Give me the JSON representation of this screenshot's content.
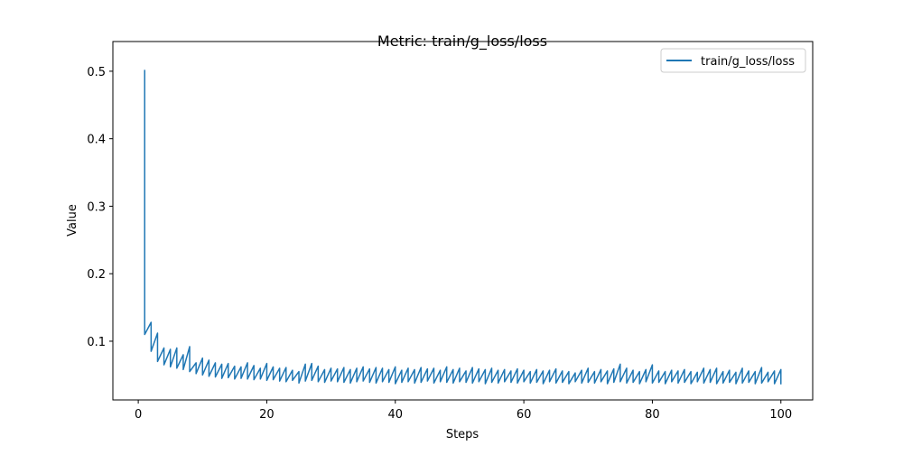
{
  "chart_data": {
    "type": "line",
    "title": "Metric: train/g_loss/loss",
    "xlabel": "Steps",
    "ylabel": "Value",
    "x": [
      1,
      1,
      2,
      2,
      3,
      3,
      4,
      4,
      5,
      5,
      6,
      6,
      7,
      7,
      8,
      8,
      9,
      9,
      10,
      10,
      11,
      11,
      12,
      12,
      13,
      13,
      14,
      14,
      15,
      15,
      16,
      16,
      17,
      17,
      18,
      18,
      19,
      19,
      20,
      20,
      21,
      21,
      22,
      22,
      23,
      23,
      24,
      24,
      25,
      25,
      26,
      26,
      27,
      27,
      28,
      28,
      29,
      29,
      30,
      30,
      31,
      31,
      32,
      32,
      33,
      33,
      34,
      34,
      35,
      35,
      36,
      36,
      37,
      37,
      38,
      38,
      39,
      39,
      40,
      40,
      41,
      41,
      42,
      42,
      43,
      43,
      44,
      44,
      45,
      45,
      46,
      46,
      47,
      47,
      48,
      48,
      49,
      49,
      50,
      50,
      51,
      51,
      52,
      52,
      53,
      53,
      54,
      54,
      55,
      55,
      56,
      56,
      57,
      57,
      58,
      58,
      59,
      59,
      60,
      60,
      61,
      61,
      62,
      62,
      63,
      63,
      64,
      64,
      65,
      65,
      66,
      66,
      67,
      67,
      68,
      68,
      69,
      69,
      70,
      70,
      71,
      71,
      72,
      72,
      73,
      73,
      74,
      74,
      75,
      75,
      76,
      76,
      77,
      77,
      78,
      78,
      79,
      79,
      80,
      80,
      81,
      81,
      82,
      82,
      83,
      83,
      84,
      84,
      85,
      85,
      86,
      86,
      87,
      87,
      88,
      88,
      89,
      89,
      90,
      90,
      91,
      91,
      92,
      92,
      93,
      93,
      94,
      94,
      95,
      95,
      96,
      96,
      97,
      97,
      98,
      98,
      99,
      99,
      100,
      100
    ],
    "series": [
      {
        "name": "train/g_loss/loss",
        "color": "#1f77b4",
        "values": [
          0.502,
          0.11,
          0.128,
          0.085,
          0.112,
          0.07,
          0.09,
          0.065,
          0.088,
          0.062,
          0.09,
          0.06,
          0.08,
          0.058,
          0.092,
          0.055,
          0.068,
          0.052,
          0.075,
          0.05,
          0.072,
          0.048,
          0.068,
          0.047,
          0.066,
          0.045,
          0.067,
          0.046,
          0.063,
          0.044,
          0.062,
          0.045,
          0.068,
          0.044,
          0.064,
          0.043,
          0.06,
          0.044,
          0.067,
          0.042,
          0.062,
          0.043,
          0.06,
          0.041,
          0.061,
          0.04,
          0.057,
          0.042,
          0.055,
          0.038,
          0.066,
          0.041,
          0.067,
          0.042,
          0.063,
          0.04,
          0.058,
          0.039,
          0.06,
          0.041,
          0.059,
          0.04,
          0.061,
          0.039,
          0.058,
          0.038,
          0.06,
          0.04,
          0.062,
          0.041,
          0.059,
          0.039,
          0.061,
          0.038,
          0.06,
          0.04,
          0.058,
          0.039,
          0.062,
          0.037,
          0.057,
          0.039,
          0.06,
          0.04,
          0.058,
          0.038,
          0.061,
          0.039,
          0.059,
          0.041,
          0.06,
          0.038,
          0.057,
          0.04,
          0.062,
          0.039,
          0.058,
          0.038,
          0.06,
          0.04,
          0.056,
          0.039,
          0.061,
          0.038,
          0.059,
          0.04,
          0.058,
          0.037,
          0.06,
          0.039,
          0.057,
          0.038,
          0.058,
          0.04,
          0.056,
          0.039,
          0.059,
          0.038,
          0.057,
          0.04,
          0.055,
          0.038,
          0.058,
          0.039,
          0.056,
          0.037,
          0.057,
          0.04,
          0.059,
          0.038,
          0.056,
          0.039,
          0.055,
          0.037,
          0.053,
          0.04,
          0.057,
          0.038,
          0.06,
          0.039,
          0.055,
          0.038,
          0.058,
          0.04,
          0.056,
          0.037,
          0.059,
          0.039,
          0.066,
          0.04,
          0.06,
          0.038,
          0.057,
          0.039,
          0.055,
          0.037,
          0.058,
          0.04,
          0.065,
          0.038,
          0.056,
          0.039,
          0.055,
          0.037,
          0.057,
          0.04,
          0.056,
          0.038,
          0.058,
          0.039,
          0.055,
          0.037,
          0.054,
          0.04,
          0.06,
          0.038,
          0.058,
          0.039,
          0.06,
          0.037,
          0.055,
          0.038,
          0.057,
          0.039,
          0.054,
          0.037,
          0.06,
          0.038,
          0.056,
          0.039,
          0.055,
          0.037,
          0.061,
          0.038,
          0.054,
          0.04,
          0.056,
          0.037,
          0.058,
          0.036
        ]
      }
    ],
    "xlim": [
      -3.95,
      104.95
    ],
    "ylim": [
      0.013,
      0.544
    ],
    "xticks": [
      0,
      20,
      40,
      60,
      80,
      100
    ],
    "yticks": [
      0.1,
      0.2,
      0.3,
      0.4,
      0.5
    ],
    "legend": "upper right"
  }
}
